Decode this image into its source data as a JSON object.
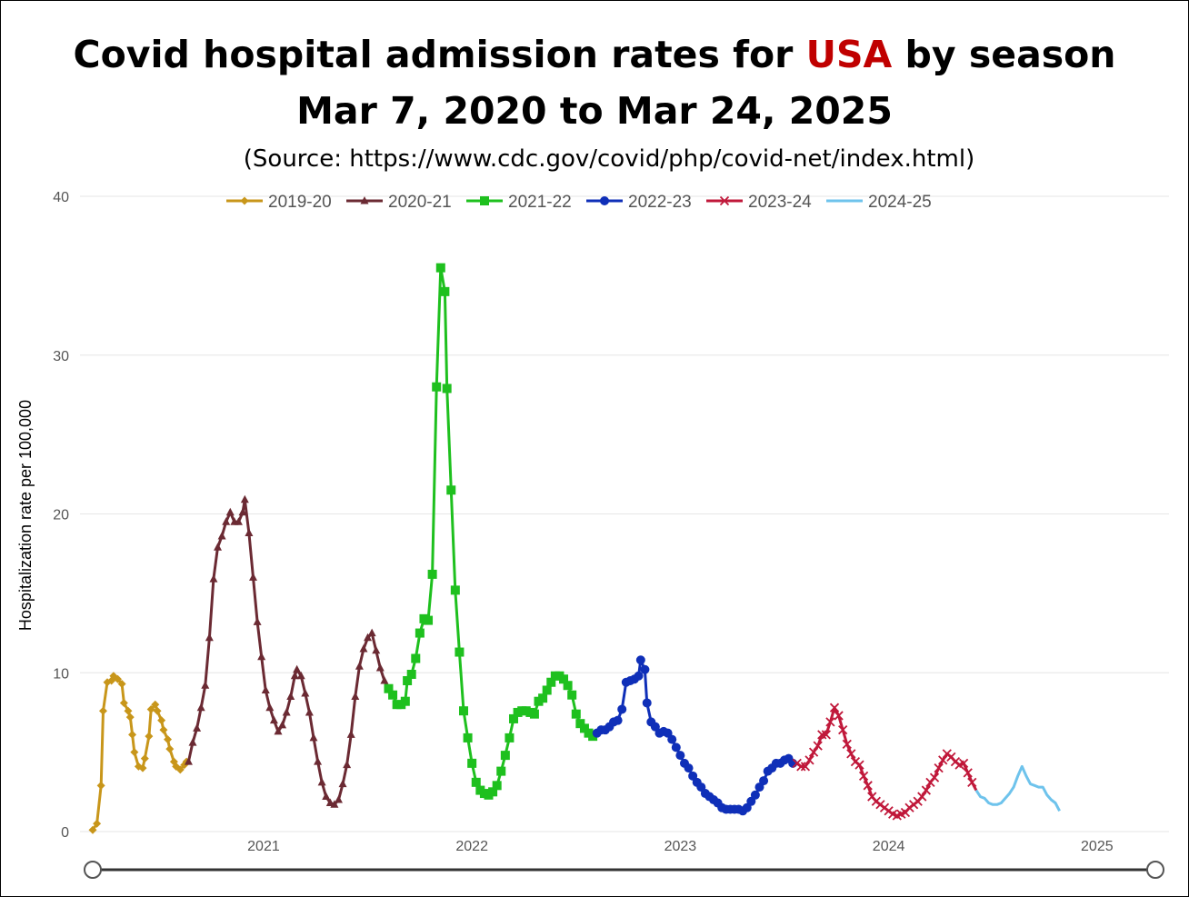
{
  "title": {
    "line1_prefix": "Covid hospital admission rates for ",
    "line1_accent": "USA",
    "line1_suffix": " by season",
    "line2": "Mar 7, 2020 to Mar 24, 2025",
    "source": "(Source: https://www.cdc.gov/covid/php/covid-net/index.html)",
    "accent_color": "#c00000"
  },
  "chart_data": {
    "type": "line",
    "ylabel": "Hospitalization rate per 100,000",
    "xlabel": "",
    "ylim": [
      0,
      40
    ],
    "yticks": [
      0,
      10,
      20,
      30,
      40
    ],
    "xlim": [
      2020.18,
      2025.28
    ],
    "xticks": [
      {
        "value": 2021.0,
        "label": "2021"
      },
      {
        "value": 2022.0,
        "label": "2022"
      },
      {
        "value": 2023.0,
        "label": "2023"
      },
      {
        "value": 2024.0,
        "label": "2024"
      },
      {
        "value": 2025.0,
        "label": "2025"
      }
    ],
    "grid": "horizontal",
    "legend_position": "top",
    "series": [
      {
        "name": "2019-20",
        "color": "#c8961a",
        "marker": "diamond",
        "points": [
          [
            2020.18,
            0.1
          ],
          [
            2020.2,
            0.5
          ],
          [
            2020.22,
            2.9
          ],
          [
            2020.23,
            7.6
          ],
          [
            2020.25,
            9.4
          ],
          [
            2020.27,
            9.5
          ],
          [
            2020.28,
            9.8
          ],
          [
            2020.3,
            9.6
          ],
          [
            2020.32,
            9.3
          ],
          [
            2020.33,
            8.1
          ],
          [
            2020.35,
            7.6
          ],
          [
            2020.36,
            7.2
          ],
          [
            2020.37,
            6.1
          ],
          [
            2020.38,
            5.0
          ],
          [
            2020.4,
            4.1
          ],
          [
            2020.42,
            4.0
          ],
          [
            2020.43,
            4.6
          ],
          [
            2020.45,
            6.0
          ],
          [
            2020.46,
            7.7
          ],
          [
            2020.48,
            8.0
          ],
          [
            2020.49,
            7.6
          ],
          [
            2020.51,
            7.0
          ],
          [
            2020.52,
            6.4
          ],
          [
            2020.54,
            5.8
          ],
          [
            2020.55,
            5.2
          ],
          [
            2020.57,
            4.4
          ],
          [
            2020.58,
            4.1
          ],
          [
            2020.6,
            3.9
          ],
          [
            2020.62,
            4.2
          ],
          [
            2020.63,
            4.4
          ]
        ]
      },
      {
        "name": "2020-21",
        "color": "#6b2a33",
        "marker": "triangle",
        "points": [
          [
            2020.64,
            4.4
          ],
          [
            2020.66,
            5.6
          ],
          [
            2020.68,
            6.5
          ],
          [
            2020.7,
            7.8
          ],
          [
            2020.72,
            9.2
          ],
          [
            2020.74,
            12.2
          ],
          [
            2020.76,
            15.9
          ],
          [
            2020.78,
            17.9
          ],
          [
            2020.8,
            18.6
          ],
          [
            2020.82,
            19.5
          ],
          [
            2020.84,
            20.1
          ],
          [
            2020.86,
            19.5
          ],
          [
            2020.88,
            19.5
          ],
          [
            2020.9,
            20.1
          ],
          [
            2020.91,
            20.9
          ],
          [
            2020.93,
            18.8
          ],
          [
            2020.95,
            16.0
          ],
          [
            2020.97,
            13.2
          ],
          [
            2020.99,
            11.0
          ],
          [
            2021.01,
            8.9
          ],
          [
            2021.03,
            7.8
          ],
          [
            2021.05,
            7.0
          ],
          [
            2021.07,
            6.3
          ],
          [
            2021.09,
            6.7
          ],
          [
            2021.11,
            7.5
          ],
          [
            2021.13,
            8.5
          ],
          [
            2021.15,
            9.8
          ],
          [
            2021.16,
            10.2
          ],
          [
            2021.18,
            9.8
          ],
          [
            2021.2,
            8.7
          ],
          [
            2021.22,
            7.5
          ],
          [
            2021.24,
            5.9
          ],
          [
            2021.26,
            4.4
          ],
          [
            2021.28,
            3.1
          ],
          [
            2021.3,
            2.2
          ],
          [
            2021.32,
            1.8
          ],
          [
            2021.34,
            1.7
          ],
          [
            2021.36,
            2.0
          ],
          [
            2021.38,
            3.0
          ],
          [
            2021.4,
            4.2
          ],
          [
            2021.42,
            6.1
          ],
          [
            2021.44,
            8.5
          ],
          [
            2021.46,
            10.4
          ],
          [
            2021.48,
            11.5
          ],
          [
            2021.5,
            12.2
          ],
          [
            2021.52,
            12.5
          ],
          [
            2021.54,
            11.4
          ],
          [
            2021.56,
            10.3
          ],
          [
            2021.58,
            9.5
          ]
        ]
      },
      {
        "name": "2021-22",
        "color": "#1ec01e",
        "marker": "square",
        "points": [
          [
            2021.6,
            9.0
          ],
          [
            2021.62,
            8.6
          ],
          [
            2021.64,
            8.0
          ],
          [
            2021.66,
            8.0
          ],
          [
            2021.68,
            8.2
          ],
          [
            2021.69,
            9.5
          ],
          [
            2021.71,
            9.9
          ],
          [
            2021.73,
            10.9
          ],
          [
            2021.75,
            12.5
          ],
          [
            2021.77,
            13.4
          ],
          [
            2021.79,
            13.3
          ],
          [
            2021.81,
            16.2
          ],
          [
            2021.83,
            28.0
          ],
          [
            2021.85,
            35.5
          ],
          [
            2021.87,
            34.0
          ],
          [
            2021.88,
            27.9
          ],
          [
            2021.9,
            21.5
          ],
          [
            2021.92,
            15.2
          ],
          [
            2021.94,
            11.3
          ],
          [
            2021.96,
            7.6
          ],
          [
            2021.98,
            5.9
          ],
          [
            2022.0,
            4.3
          ],
          [
            2022.02,
            3.1
          ],
          [
            2022.04,
            2.6
          ],
          [
            2022.06,
            2.4
          ],
          [
            2022.08,
            2.3
          ],
          [
            2022.1,
            2.5
          ],
          [
            2022.12,
            2.9
          ],
          [
            2022.14,
            3.8
          ],
          [
            2022.16,
            4.8
          ],
          [
            2022.18,
            5.9
          ],
          [
            2022.2,
            7.1
          ],
          [
            2022.22,
            7.5
          ],
          [
            2022.24,
            7.6
          ],
          [
            2022.26,
            7.6
          ],
          [
            2022.28,
            7.5
          ],
          [
            2022.3,
            7.4
          ],
          [
            2022.32,
            8.2
          ],
          [
            2022.34,
            8.4
          ],
          [
            2022.36,
            8.9
          ],
          [
            2022.38,
            9.4
          ],
          [
            2022.4,
            9.8
          ],
          [
            2022.42,
            9.8
          ],
          [
            2022.44,
            9.6
          ],
          [
            2022.46,
            9.2
          ],
          [
            2022.48,
            8.6
          ],
          [
            2022.5,
            7.4
          ],
          [
            2022.52,
            6.8
          ],
          [
            2022.54,
            6.5
          ],
          [
            2022.56,
            6.2
          ],
          [
            2022.58,
            6.0
          ]
        ]
      },
      {
        "name": "2022-23",
        "color": "#0f2fb8",
        "marker": "circle",
        "points": [
          [
            2022.6,
            6.2
          ],
          [
            2022.62,
            6.4
          ],
          [
            2022.64,
            6.4
          ],
          [
            2022.66,
            6.6
          ],
          [
            2022.68,
            6.9
          ],
          [
            2022.7,
            7.0
          ],
          [
            2022.72,
            7.7
          ],
          [
            2022.74,
            9.4
          ],
          [
            2022.76,
            9.5
          ],
          [
            2022.78,
            9.6
          ],
          [
            2022.8,
            9.8
          ],
          [
            2022.81,
            10.8
          ],
          [
            2022.83,
            10.2
          ],
          [
            2022.84,
            8.1
          ],
          [
            2022.86,
            6.9
          ],
          [
            2022.88,
            6.6
          ],
          [
            2022.9,
            6.2
          ],
          [
            2022.92,
            6.3
          ],
          [
            2022.94,
            6.2
          ],
          [
            2022.96,
            5.8
          ],
          [
            2022.98,
            5.3
          ],
          [
            2023.0,
            4.8
          ],
          [
            2023.02,
            4.3
          ],
          [
            2023.04,
            4.0
          ],
          [
            2023.06,
            3.5
          ],
          [
            2023.08,
            3.1
          ],
          [
            2023.1,
            2.8
          ],
          [
            2023.12,
            2.4
          ],
          [
            2023.14,
            2.2
          ],
          [
            2023.16,
            2.0
          ],
          [
            2023.18,
            1.8
          ],
          [
            2023.2,
            1.5
          ],
          [
            2023.22,
            1.4
          ],
          [
            2023.24,
            1.4
          ],
          [
            2023.26,
            1.4
          ],
          [
            2023.28,
            1.4
          ],
          [
            2023.3,
            1.3
          ],
          [
            2023.32,
            1.5
          ],
          [
            2023.34,
            1.9
          ],
          [
            2023.36,
            2.3
          ],
          [
            2023.38,
            2.8
          ],
          [
            2023.4,
            3.2
          ],
          [
            2023.42,
            3.8
          ],
          [
            2023.44,
            4.0
          ],
          [
            2023.46,
            4.3
          ],
          [
            2023.48,
            4.3
          ],
          [
            2023.5,
            4.5
          ],
          [
            2023.52,
            4.6
          ],
          [
            2023.54,
            4.3
          ]
        ]
      },
      {
        "name": "2023-24",
        "color": "#c0183a",
        "marker": "x",
        "points": [
          [
            2023.56,
            4.3
          ],
          [
            2023.58,
            4.1
          ],
          [
            2023.6,
            4.1
          ],
          [
            2023.62,
            4.5
          ],
          [
            2023.64,
            5.0
          ],
          [
            2023.66,
            5.4
          ],
          [
            2023.68,
            6.1
          ],
          [
            2023.7,
            6.1
          ],
          [
            2023.72,
            6.9
          ],
          [
            2023.74,
            7.8
          ],
          [
            2023.76,
            7.3
          ],
          [
            2023.78,
            6.4
          ],
          [
            2023.8,
            5.5
          ],
          [
            2023.82,
            4.9
          ],
          [
            2023.84,
            4.4
          ],
          [
            2023.86,
            4.2
          ],
          [
            2023.88,
            3.5
          ],
          [
            2023.9,
            2.9
          ],
          [
            2023.92,
            2.2
          ],
          [
            2023.94,
            1.9
          ],
          [
            2023.96,
            1.7
          ],
          [
            2023.98,
            1.5
          ],
          [
            2024.0,
            1.3
          ],
          [
            2024.02,
            1.1
          ],
          [
            2024.04,
            1.0
          ],
          [
            2024.06,
            1.1
          ],
          [
            2024.08,
            1.2
          ],
          [
            2024.1,
            1.5
          ],
          [
            2024.12,
            1.7
          ],
          [
            2024.14,
            1.9
          ],
          [
            2024.16,
            2.2
          ],
          [
            2024.18,
            2.6
          ],
          [
            2024.2,
            3.1
          ],
          [
            2024.22,
            3.4
          ],
          [
            2024.24,
            4.0
          ],
          [
            2024.26,
            4.5
          ],
          [
            2024.28,
            4.9
          ],
          [
            2024.3,
            4.7
          ],
          [
            2024.32,
            4.4
          ],
          [
            2024.34,
            4.2
          ],
          [
            2024.36,
            4.3
          ],
          [
            2024.38,
            3.7
          ],
          [
            2024.4,
            3.1
          ]
        ]
      },
      {
        "name": "2024-25",
        "color": "#6ec3ec",
        "marker": "none",
        "points": [
          [
            2024.42,
            2.6
          ],
          [
            2024.44,
            2.2
          ],
          [
            2024.46,
            2.1
          ],
          [
            2024.48,
            1.8
          ],
          [
            2024.5,
            1.7
          ],
          [
            2024.52,
            1.7
          ],
          [
            2024.54,
            1.8
          ],
          [
            2024.56,
            2.1
          ],
          [
            2024.58,
            2.4
          ],
          [
            2024.6,
            2.8
          ],
          [
            2024.62,
            3.5
          ],
          [
            2024.64,
            4.1
          ],
          [
            2024.66,
            3.5
          ],
          [
            2024.68,
            3.0
          ],
          [
            2024.7,
            2.9
          ],
          [
            2024.72,
            2.8
          ],
          [
            2024.74,
            2.8
          ],
          [
            2024.76,
            2.3
          ],
          [
            2024.78,
            2.0
          ],
          [
            2024.8,
            1.8
          ],
          [
            2024.82,
            1.3
          ]
        ]
      }
    ]
  }
}
